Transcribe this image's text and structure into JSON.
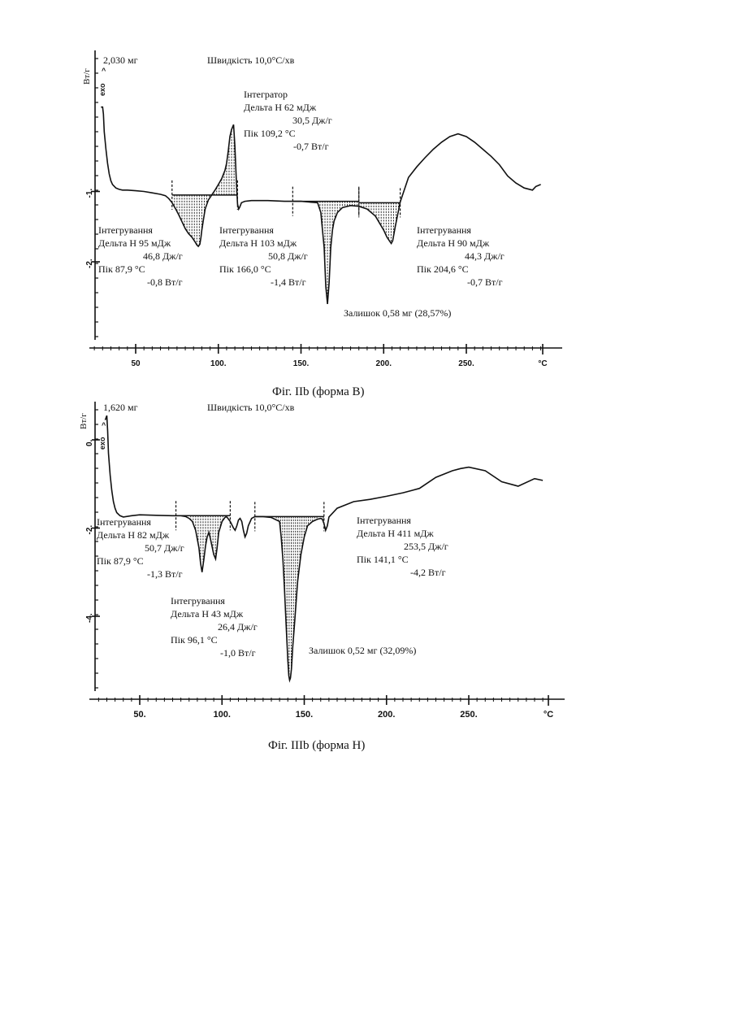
{
  "chart_data": [
    {
      "type": "line",
      "caption": "Фіг. IIb (форма В)",
      "sample_mass": "2,030 мг",
      "rate": "Швидкість 10,0°C/хв",
      "ylabel": "Вт/г",
      "exo_label": "exo",
      "x_unit_label": "°C",
      "xlim": [
        20,
        300
      ],
      "ylim": [
        -2.85,
        0.45
      ],
      "x_ticks": [
        50,
        100,
        150,
        200,
        250
      ],
      "x_tick_labels": [
        "50",
        "100.",
        "150.",
        "200.",
        "250."
      ],
      "y_ticks": [
        -1,
        -2
      ],
      "y_tick_labels": [
        "-1.",
        "-2."
      ],
      "curve": {
        "x": [
          29,
          30,
          30.5,
          31,
          32,
          33,
          34,
          35,
          36,
          38,
          40,
          42,
          45,
          50,
          55,
          60,
          65,
          68,
          70,
          72,
          74,
          76,
          78,
          80,
          82,
          84,
          86,
          87,
          87.9,
          88.8,
          89.5,
          90,
          91,
          92,
          94,
          96,
          98,
          100,
          102,
          104,
          105,
          106,
          107,
          108,
          109.2,
          110,
          111,
          111.6,
          112.3,
          113,
          114,
          116,
          120,
          130,
          140,
          150,
          155,
          160,
          162,
          164,
          165,
          166,
          167,
          168,
          169,
          170,
          172,
          175,
          180,
          185,
          190,
          195,
          200,
          202,
          204,
          204.6,
          205.5,
          207,
          210,
          215,
          220,
          225,
          230,
          235,
          240,
          245,
          250,
          255,
          260,
          265,
          270,
          275,
          280,
          285,
          290,
          292,
          295
        ],
        "y": [
          0.2,
          0.2,
          0.1,
          -0.15,
          -0.4,
          -0.6,
          -0.75,
          -0.85,
          -0.9,
          -0.95,
          -0.97,
          -0.98,
          -0.98,
          -0.99,
          -1.0,
          -1.02,
          -1.04,
          -1.06,
          -1.1,
          -1.16,
          -1.24,
          -1.33,
          -1.43,
          -1.53,
          -1.6,
          -1.65,
          -1.72,
          -1.76,
          -1.78,
          -1.75,
          -1.65,
          -1.55,
          -1.4,
          -1.25,
          -1.12,
          -1.05,
          -0.98,
          -0.9,
          -0.82,
          -0.7,
          -0.6,
          -0.42,
          -0.22,
          -0.12,
          -0.05,
          -0.35,
          -0.9,
          -1.18,
          -1.25,
          -1.22,
          -1.16,
          -1.14,
          -1.13,
          -1.13,
          -1.14,
          -1.14,
          -1.15,
          -1.16,
          -1.3,
          -1.8,
          -2.35,
          -2.6,
          -2.3,
          -1.8,
          -1.55,
          -1.42,
          -1.3,
          -1.23,
          -1.2,
          -1.21,
          -1.25,
          -1.35,
          -1.55,
          -1.65,
          -1.72,
          -1.74,
          -1.7,
          -1.5,
          -1.15,
          -0.8,
          -0.65,
          -0.52,
          -0.4,
          -0.3,
          -0.22,
          -0.18,
          -0.22,
          -0.3,
          -0.4,
          -0.5,
          -0.62,
          -0.78,
          -0.88,
          -0.95,
          -0.98,
          -0.93,
          -0.9
        ]
      },
      "annotations": [
        {
          "id": "integrator",
          "lines": [
            "Інтегратор",
            "Дельта Н   62 мДж",
            "30,5 Дж/г",
            "Пік        109,2 °C",
            "-0,7 Вт/г"
          ]
        },
        {
          "id": "integration-1",
          "lines": [
            "Інтегрування",
            "Дельта Н   95 мДж",
            "46,8 Дж/г",
            "Пік        87,9 °C",
            "-0,8 Вт/г"
          ]
        },
        {
          "id": "integration-2",
          "lines": [
            "Інтегрування",
            "Дельта Н  103 мДж",
            "50,8 Дж/г",
            "Пік        166,0 °C",
            "-1,4 Вт/г"
          ]
        },
        {
          "id": "integration-3",
          "lines": [
            "Інтегрування",
            "Дельта Н   90 мДж",
            "44,3 Дж/г",
            "Пік        204,6 °C",
            "-0,7 Вт/г"
          ]
        },
        {
          "id": "residue",
          "lines": [
            "Залишок 0,58 мг (28,57%)"
          ]
        }
      ]
    },
    {
      "type": "line",
      "caption": "Фіг. IIIb (форма Н)",
      "sample_mass": "1,620 мг",
      "rate": "Швидкість 10,0°C/хв",
      "ylabel": "Вт/г",
      "exo_label": "exo",
      "x_unit_label": "°C",
      "xlim": [
        20,
        300
      ],
      "ylim": [
        -5.6,
        0.85
      ],
      "x_ticks": [
        50,
        100,
        150,
        200,
        250
      ],
      "x_tick_labels": [
        "50.",
        "100.",
        "150.",
        "200.",
        "250."
      ],
      "y_ticks": [
        0,
        -2,
        -4
      ],
      "y_tick_labels": [
        "0.",
        "-2.",
        "-4."
      ],
      "curve": {
        "x": [
          29,
          30,
          30.5,
          31,
          32,
          33,
          34,
          35,
          36,
          38,
          40,
          45,
          50,
          60,
          70,
          75,
          78,
          80,
          82,
          84,
          86,
          87,
          87.9,
          89,
          90,
          91,
          92,
          93,
          95,
          96.1,
          97,
          98,
          100,
          102,
          103,
          105,
          107,
          108,
          109,
          110,
          111,
          112,
          113,
          114,
          115,
          116,
          118,
          120,
          125,
          130,
          135,
          136,
          137,
          138,
          139,
          140,
          140.6,
          141.1,
          141.6,
          142.2,
          143,
          144,
          145,
          146,
          148,
          150,
          152,
          155,
          158,
          160,
          161,
          162,
          163,
          164,
          165,
          170,
          180,
          190,
          200,
          210,
          220,
          230,
          240,
          245,
          250,
          260,
          270,
          280,
          290,
          295
        ],
        "y": [
          0.45,
          0.55,
          0.2,
          -0.3,
          -0.8,
          -1.15,
          -1.4,
          -1.55,
          -1.65,
          -1.72,
          -1.75,
          -1.72,
          -1.7,
          -1.71,
          -1.72,
          -1.72,
          -1.74,
          -1.78,
          -1.85,
          -2.05,
          -2.45,
          -2.8,
          -3.0,
          -2.7,
          -2.4,
          -2.2,
          -2.1,
          -2.25,
          -2.6,
          -2.7,
          -2.45,
          -2.1,
          -1.85,
          -1.75,
          -1.75,
          -1.85,
          -2.0,
          -2.05,
          -1.95,
          -1.82,
          -1.78,
          -1.85,
          -2.05,
          -2.2,
          -2.12,
          -1.95,
          -1.78,
          -1.74,
          -1.74,
          -1.76,
          -1.85,
          -2.2,
          -2.7,
          -3.4,
          -4.2,
          -5.0,
          -5.35,
          -5.45,
          -5.4,
          -5.2,
          -4.7,
          -4.2,
          -3.7,
          -3.2,
          -2.6,
          -2.2,
          -1.95,
          -1.85,
          -1.8,
          -1.78,
          -1.8,
          -1.9,
          -2.05,
          -1.95,
          -1.75,
          -1.55,
          -1.4,
          -1.35,
          -1.28,
          -1.2,
          -1.1,
          -0.85,
          -0.7,
          -0.65,
          -0.62,
          -0.7,
          -0.95,
          -1.05,
          -0.88,
          -0.92
        ]
      },
      "annotations": [
        {
          "id": "integration-1",
          "lines": [
            "Інтегрування",
            "Дельта Н   82 мДж",
            "50,7 Дж/г",
            "Пік        87,9 °C",
            "-1,3 Вт/г"
          ]
        },
        {
          "id": "integration-2",
          "lines": [
            "Інтегрування",
            "Дельта Н    43 мДж",
            "26,4 Дж/г",
            "Пік        96,1 °C",
            "-1,0 Вт/г"
          ]
        },
        {
          "id": "integration-3",
          "lines": [
            "Інтегрування",
            "Дельта Н   411 мДж",
            "253,5 Дж/г",
            "Пік        141,1 °C",
            "-4,2 Вт/г"
          ]
        },
        {
          "id": "residue",
          "lines": [
            "Залишок 0,52 мг (32,09%)"
          ]
        }
      ]
    }
  ]
}
